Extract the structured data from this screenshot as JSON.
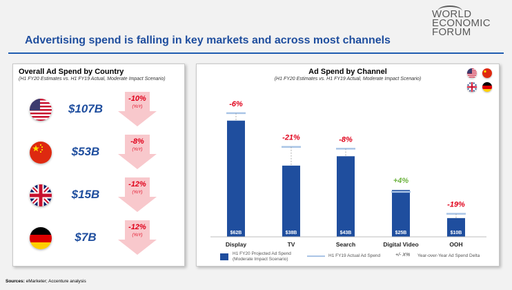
{
  "logo": {
    "line1": "WORLD",
    "line2": "ECONOMIC",
    "line3": "FORUM"
  },
  "title": "Advertising spend is falling in key markets and across most channels",
  "left_panel": {
    "title": "Overall Ad Spend by Country",
    "subtitle": "(H1 FY20 Estimates vs. H1 FY19 Actual, Moderate Impact Scenario)",
    "rows": [
      {
        "flag": "usa-flag",
        "amount": "$107B",
        "change": "-10%",
        "yoy": "(YoY)"
      },
      {
        "flag": "china-flag",
        "amount": "$53B",
        "change": "-8%",
        "yoy": "(YoY)"
      },
      {
        "flag": "uk-flag",
        "amount": "$15B",
        "change": "-12%",
        "yoy": "(YoY)"
      },
      {
        "flag": "germany-flag",
        "amount": "$7B",
        "change": "-12%",
        "yoy": "(YoY)"
      }
    ]
  },
  "chart_data": {
    "type": "bar",
    "title": "Ad Spend by Channel",
    "subtitle": "(H1 FY20 Estimates vs. H1 FY19 Actual, Moderate Impact Scenario)",
    "categories": [
      "Display",
      "TV",
      "Search",
      "Digital Video",
      "OOH"
    ],
    "series": [
      {
        "name": "H1 FY20 Projected Ad Spend (Moderate Impact Scenario)",
        "values": [
          62,
          38,
          43,
          25,
          10
        ]
      },
      {
        "name": "H1 FY19 Actual Ad Spend",
        "values": [
          66,
          48,
          47,
          24,
          12.3
        ]
      }
    ],
    "value_labels": [
      "$62B",
      "$38B",
      "$43B",
      "$25B",
      "$10B"
    ],
    "deltas": [
      "-6%",
      "-21%",
      "-8%",
      "+4%",
      "-19%"
    ],
    "delta_colors": [
      "#e0001a",
      "#e0001a",
      "#e0001a",
      "#6db33f",
      "#e0001a"
    ],
    "ylim": [
      0,
      70
    ],
    "legend_position": "bottom",
    "colors": {
      "bar": "#1f4e9e",
      "reference": "#a9c4e6"
    }
  },
  "legend": {
    "projected": "H1 FY20 Projected Ad Spend (Moderate Impact Scenario)",
    "actual": "H1 FY19 Actual Ad Spend",
    "delta_symbol": "+/- X%",
    "delta_text": "Year-over-Year Ad Spend Delta"
  },
  "sources": {
    "label": "Sources:",
    "text": "eMarketer; Accenture analysis"
  }
}
